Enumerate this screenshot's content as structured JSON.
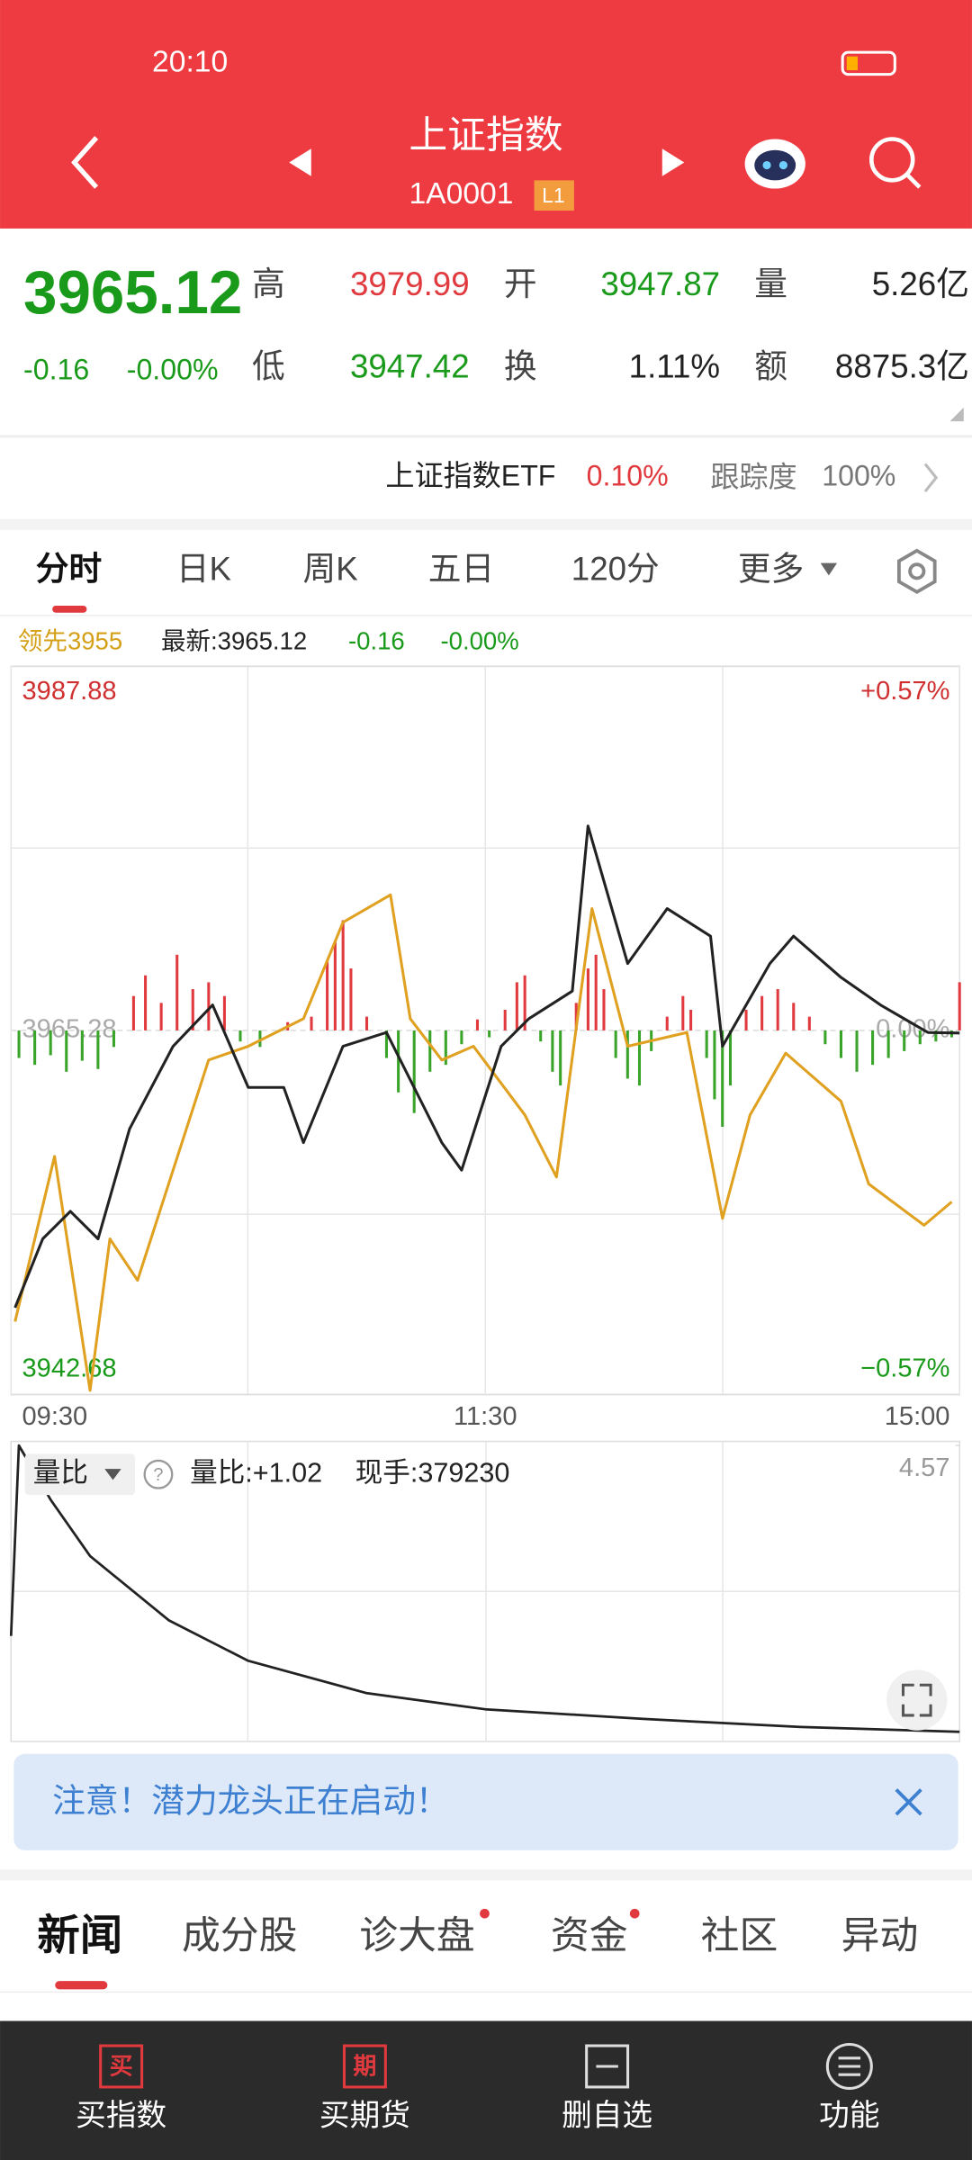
{
  "status_bar": {
    "time": "20:10"
  },
  "header": {
    "title": "上证指数",
    "code": "1A0001",
    "badge": "L1"
  },
  "quote": {
    "price": "3965.12",
    "change": "-0.16",
    "change_pct": "-0.00%",
    "fields": [
      {
        "label": "高",
        "value": "3979.99"
      },
      {
        "label": "开",
        "value": "3947.87"
      },
      {
        "label": "量",
        "value": "5.26亿"
      },
      {
        "label": "低",
        "value": "3947.42"
      },
      {
        "label": "换",
        "value": "1.11%"
      },
      {
        "label": "额",
        "value": "8875.3亿"
      }
    ]
  },
  "etf": {
    "name": "上证指数ETF",
    "pct": "0.10%",
    "track_label": "跟踪度",
    "track": "100%"
  },
  "tabs": [
    "分时",
    "日K",
    "周K",
    "五日",
    "120分",
    "更多"
  ],
  "legend": {
    "lead": "领先3955",
    "latest": "最新:3965.12",
    "change": "-0.16",
    "pct": "-0.00%"
  },
  "chart_data": {
    "type": "line",
    "xlim": [
      0,
      240
    ],
    "xticks": [
      {
        "value": 0,
        "label": "09:30"
      },
      {
        "value": 120,
        "label": "11:30"
      },
      {
        "value": 240,
        "label": "15:00"
      }
    ],
    "ylim": [
      3942.68,
      3987.88
    ],
    "yticks": [
      3942.68,
      3965.28,
      3987.88
    ],
    "y2lim": [
      -0.57,
      0.57
    ],
    "y2ticks": [
      {
        "value": -0.57,
        "label": "−0.57%"
      },
      {
        "value": 0,
        "label": "0.00%"
      },
      {
        "value": 0.57,
        "label": "+0.57%"
      }
    ],
    "series": [
      {
        "name": "最新",
        "color": "#222222",
        "x": [
          1,
          8,
          15,
          22,
          30,
          41,
          51,
          60,
          69,
          74,
          84,
          95,
          109,
          114,
          124,
          131,
          142,
          146,
          156,
          166,
          177,
          180,
          192,
          198,
          210,
          220,
          232,
          240
        ],
        "values": [
          3948.07,
          3952.34,
          3954.05,
          3952.34,
          3959.17,
          3964.3,
          3966.86,
          3961.74,
          3961.74,
          3958.32,
          3964.3,
          3965.15,
          3958.32,
          3956.61,
          3964.3,
          3966.01,
          3967.72,
          3977.97,
          3969.43,
          3972.84,
          3971.13,
          3964.3,
          3969.43,
          3971.13,
          3968.57,
          3966.86,
          3965.15,
          3965.12
        ]
      },
      {
        "name": "领先",
        "color": "#e0a020",
        "x": [
          1,
          11,
          20,
          25,
          32,
          41,
          50,
          60,
          74,
          84,
          96,
          101,
          109,
          117,
          130,
          138,
          147,
          156,
          171,
          180,
          187,
          196,
          210,
          217,
          231,
          238
        ],
        "values": [
          3947.21,
          3957.46,
          3942.94,
          3952.34,
          3949.77,
          3956.61,
          3963.44,
          3964.3,
          3966.01,
          3971.99,
          3973.7,
          3966.01,
          3963.44,
          3964.3,
          3960.03,
          3956.18,
          3972.84,
          3964.3,
          3965.15,
          3953.62,
          3960.03,
          3963.87,
          3960.88,
          3955.75,
          3953.19,
          3954.64
        ]
      }
    ],
    "flow": {
      "up_color": "#e0393e",
      "down_color": "#3aa32a",
      "x": [
        2,
        6,
        10,
        14,
        18,
        22,
        26,
        31,
        34,
        38,
        42,
        46,
        50,
        54,
        58,
        63,
        70,
        76,
        80,
        82,
        84,
        86,
        90,
        95,
        98,
        102,
        106,
        110,
        114,
        118,
        121,
        125,
        128,
        130,
        134,
        137,
        139,
        143,
        146,
        148,
        150,
        153,
        156,
        159,
        162,
        166,
        170,
        172,
        176,
        178,
        180,
        182,
        186,
        190,
        194,
        198,
        202,
        206,
        210,
        214,
        218,
        222,
        226,
        230,
        234,
        238,
        240
      ],
      "values": [
        -20,
        -25,
        -18,
        -30,
        -22,
        -28,
        -12,
        25,
        40,
        20,
        55,
        30,
        35,
        25,
        -8,
        -12,
        6,
        10,
        50,
        65,
        80,
        45,
        10,
        -20,
        -45,
        -60,
        -30,
        -25,
        -10,
        8,
        -5,
        15,
        35,
        40,
        -8,
        -30,
        -40,
        20,
        45,
        55,
        30,
        -20,
        -35,
        -40,
        -15,
        10,
        25,
        15,
        -20,
        -50,
        -70,
        -40,
        15,
        25,
        30,
        20,
        10,
        -10,
        -20,
        -30,
        -25,
        -20,
        -15,
        -10,
        -8,
        -5,
        35
      ]
    }
  },
  "volume_ratio": {
    "label": "量比",
    "info": "量比:+1.02",
    "hand": "现手:379230",
    "color": "#222222",
    "x": [
      0,
      2,
      10,
      20,
      40,
      60,
      90,
      120,
      160,
      200,
      240
    ],
    "values": [
      2.21,
      4.57,
      3.9,
      3.2,
      2.4,
      1.9,
      1.5,
      1.3,
      1.18,
      1.08,
      1.02
    ],
    "ylim": [
      0.9,
      4.57
    ],
    "yticks": [
      4.57
    ]
  },
  "notice": "注意！潜力龙头正在启动！",
  "news_tabs": [
    "新闻",
    "成分股",
    "诊大盘",
    "资金",
    "社区",
    "异动"
  ],
  "bottom_nav": [
    {
      "icon": "买",
      "label": "买指数"
    },
    {
      "icon": "期",
      "label": "买期货"
    },
    {
      "label": "删自选"
    },
    {
      "label": "功能"
    }
  ]
}
